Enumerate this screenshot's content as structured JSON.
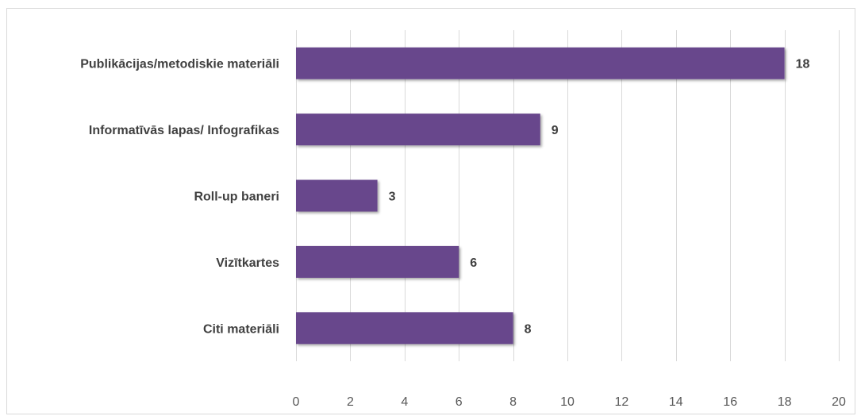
{
  "chart_data": {
    "type": "bar",
    "orientation": "horizontal",
    "categories": [
      "Publikācijas/metodiskie materiāli",
      "Informatīvās lapas/ Infografikas",
      "Roll-up baneri",
      "Vizītkartes",
      "Citi materiāli"
    ],
    "values": [
      18,
      9,
      3,
      6,
      8
    ],
    "xlim": [
      0,
      20
    ],
    "xticks": [
      0,
      2,
      4,
      6,
      8,
      10,
      12,
      14,
      16,
      18,
      20
    ],
    "data_labels": true,
    "gridlines": true,
    "legend": "none",
    "title": "",
    "xlabel": "",
    "ylabel": "",
    "colors": {
      "bar": "#68468c",
      "grid": "#d9d9d9",
      "text": "#404040",
      "tick_text": "#595959"
    }
  }
}
